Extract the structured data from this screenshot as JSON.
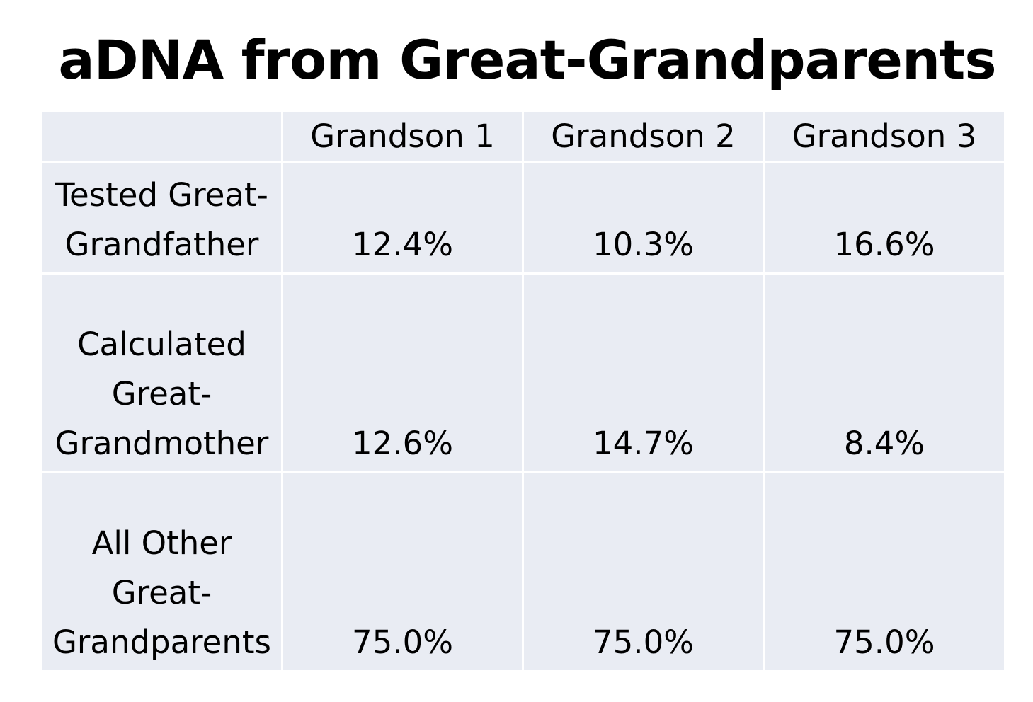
{
  "title": "aDNA from Great-Grandparents",
  "table": {
    "headers": [
      "",
      "Grandson 1",
      "Grandson 2",
      "Grandson 3"
    ],
    "rows": [
      {
        "label_lines": [
          "Tested Great-",
          "Grandfather"
        ],
        "values": [
          "12.4%",
          "10.3%",
          "16.6%"
        ]
      },
      {
        "label_lines": [
          "Calculated",
          "Great-",
          "Grandmother"
        ],
        "values": [
          "12.6%",
          "14.7%",
          "8.4%"
        ]
      },
      {
        "label_lines": [
          "All Other",
          "Great-",
          "Grandparents"
        ],
        "values": [
          "75.0%",
          "75.0%",
          "75.0%"
        ]
      }
    ]
  },
  "colors": {
    "cell_background": "#e9ecf3",
    "border": "#ffffff",
    "text": "#000000"
  }
}
